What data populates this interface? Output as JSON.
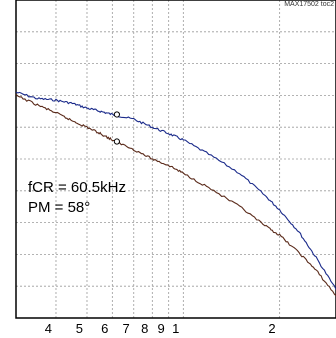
{
  "chart_data": {
    "type": "line",
    "title": "",
    "xlabel": "",
    "ylabel": "",
    "figure_id": "MAX17502 toc2",
    "x_scale": "log",
    "xlim": [
      0.3,
      3.0
    ],
    "ylim": [
      0,
      10
    ],
    "grid": true,
    "x_tick_labels": [
      {
        "x": 0.4,
        "label": "4"
      },
      {
        "x": 0.5,
        "label": "5"
      },
      {
        "x": 0.6,
        "label": "6"
      },
      {
        "x": 0.7,
        "label": "7"
      },
      {
        "x": 0.8,
        "label": "8"
      },
      {
        "x": 0.9,
        "label": "9"
      },
      {
        "x": 1.0,
        "label": "1"
      },
      {
        "x": 2.0,
        "label": "2"
      }
    ],
    "annotation_lines": [
      "fCR = 60.5kHz",
      "PM = 58°"
    ],
    "series": [
      {
        "color": "#1a2a8a",
        "x": [
          0.3,
          0.35,
          0.4,
          0.45,
          0.5,
          0.55,
          0.6,
          0.7,
          0.8,
          0.9,
          1.0,
          1.2,
          1.5,
          1.8,
          2.0,
          2.3,
          2.6,
          3.0
        ],
        "y": [
          7.1,
          6.9,
          6.85,
          6.75,
          6.6,
          6.5,
          6.4,
          6.25,
          6.0,
          5.8,
          5.6,
          5.15,
          4.55,
          3.85,
          3.4,
          2.7,
          1.9,
          0.9
        ]
      },
      {
        "color": "#5a2a1a",
        "x": [
          0.3,
          0.35,
          0.4,
          0.45,
          0.5,
          0.55,
          0.6,
          0.7,
          0.8,
          0.9,
          1.0,
          1.2,
          1.5,
          1.8,
          2.0,
          2.3,
          2.6,
          3.0
        ],
        "y": [
          7.0,
          6.7,
          6.45,
          6.2,
          6.0,
          5.8,
          5.6,
          5.3,
          5.0,
          4.8,
          4.55,
          4.1,
          3.5,
          2.9,
          2.6,
          2.05,
          1.5,
          0.7
        ]
      }
    ],
    "markers": [
      {
        "series": 0,
        "x": 0.62,
        "y": 6.4
      },
      {
        "series": 1,
        "x": 0.62,
        "y": 5.55
      }
    ]
  }
}
